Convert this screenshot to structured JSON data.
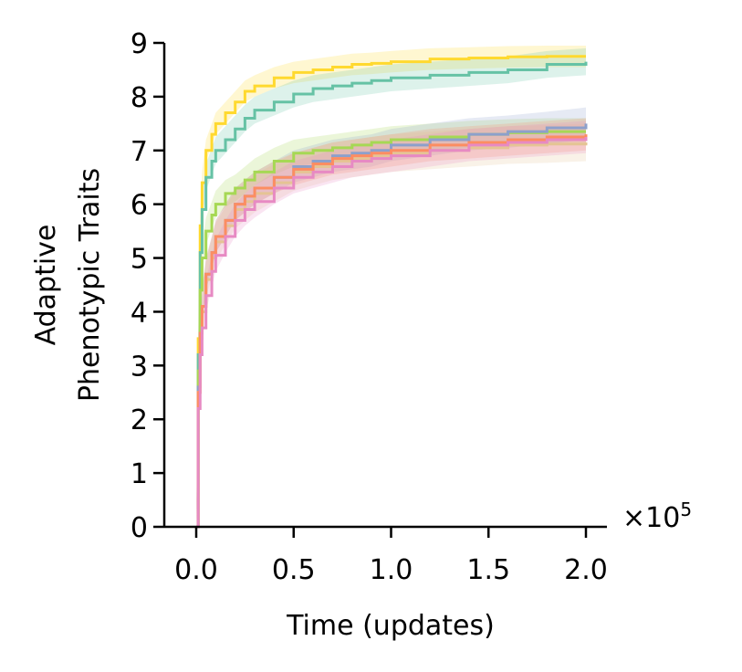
{
  "chart_data": {
    "type": "line",
    "xlabel": "Time (updates)",
    "ylabel_lines": [
      "Adaptive",
      "Phenotypic Traits"
    ],
    "x_scale_prefix": "×10",
    "x_scale_exponent": "5",
    "x_ticks": [
      "0.0",
      "0.5",
      "1.0",
      "1.5",
      "2.0"
    ],
    "x_tick_values": [
      0,
      0.5,
      1.0,
      1.5,
      2.0
    ],
    "y_ticks": [
      "0",
      "1",
      "2",
      "3",
      "4",
      "5",
      "6",
      "7",
      "8",
      "9"
    ],
    "y_tick_values": [
      0,
      1,
      2,
      3,
      4,
      5,
      6,
      7,
      8,
      9
    ],
    "xlim": [
      -0.13,
      2.1
    ],
    "ylim": [
      0,
      9
    ],
    "grid": false,
    "legend": "none",
    "x": [
      0,
      0.01,
      0.02,
      0.03,
      0.05,
      0.08,
      0.1,
      0.15,
      0.2,
      0.25,
      0.3,
      0.4,
      0.5,
      0.6,
      0.7,
      0.8,
      0.9,
      1.0,
      1.2,
      1.4,
      1.6,
      1.8,
      2.0
    ],
    "series": [
      {
        "color": "#ffd92f",
        "values": [
          0,
          3.5,
          5.6,
          6.4,
          7.0,
          7.3,
          7.5,
          7.7,
          7.9,
          8.1,
          8.2,
          8.35,
          8.45,
          8.5,
          8.55,
          8.6,
          8.62,
          8.65,
          8.7,
          8.72,
          8.74,
          8.75,
          8.75
        ],
        "band": 0.2
      },
      {
        "color": "#66c2a5",
        "values": [
          0,
          3.2,
          5.1,
          5.9,
          6.5,
          6.8,
          7.0,
          7.2,
          7.4,
          7.6,
          7.75,
          7.9,
          8.05,
          8.15,
          8.2,
          8.25,
          8.3,
          8.35,
          8.4,
          8.45,
          8.5,
          8.6,
          8.65
        ],
        "band": 0.25
      },
      {
        "color": "#a6d854",
        "values": [
          0,
          2.9,
          4.4,
          5.0,
          5.5,
          5.8,
          6.0,
          6.2,
          6.3,
          6.45,
          6.6,
          6.8,
          6.95,
          7.0,
          7.05,
          7.1,
          7.15,
          7.2,
          7.25,
          7.3,
          7.33,
          7.35,
          7.35
        ],
        "band": 0.25
      },
      {
        "color": "#8da0cb",
        "values": [
          0,
          2.6,
          3.6,
          4.1,
          4.7,
          5.1,
          5.4,
          5.7,
          6.0,
          6.15,
          6.3,
          6.5,
          6.7,
          6.8,
          6.9,
          6.95,
          7.0,
          7.1,
          7.2,
          7.3,
          7.35,
          7.42,
          7.5
        ],
        "band": 0.3
      },
      {
        "color": "#e5c494",
        "values": [
          0,
          2.5,
          3.5,
          4.0,
          4.6,
          5.0,
          5.3,
          5.6,
          5.9,
          6.05,
          6.2,
          6.4,
          6.6,
          6.7,
          6.8,
          6.85,
          6.9,
          6.95,
          7.0,
          7.05,
          7.1,
          7.12,
          7.15
        ],
        "band": 0.35
      },
      {
        "color": "#fc8d62",
        "values": [
          0,
          2.5,
          3.6,
          4.1,
          4.7,
          5.1,
          5.4,
          5.7,
          6.0,
          6.15,
          6.3,
          6.5,
          6.65,
          6.75,
          6.85,
          6.9,
          6.95,
          7.0,
          7.1,
          7.15,
          7.2,
          7.25,
          7.3
        ],
        "band": 0.3
      },
      {
        "color": "#e78ac3",
        "values": [
          0,
          2.2,
          3.2,
          3.7,
          4.3,
          4.75,
          5.05,
          5.4,
          5.7,
          5.9,
          6.05,
          6.3,
          6.5,
          6.6,
          6.7,
          6.8,
          6.85,
          6.9,
          7.0,
          7.1,
          7.15,
          7.2,
          7.25
        ],
        "band": 0.3
      }
    ]
  }
}
